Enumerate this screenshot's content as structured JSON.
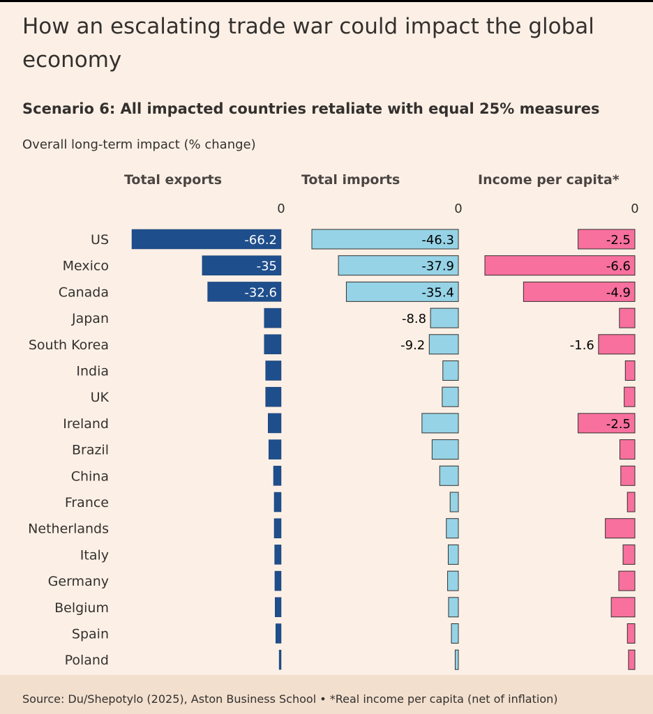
{
  "title": "How an escalating trade war could impact the global economy",
  "subtitle": "Scenario 6: All impacted countries retaliate with equal 25% measures",
  "unit_label": "Overall long-term impact (% change)",
  "source": "Source: Du/Shepotylo (2025), Aston Business School • *Real income per capita (net of inflation)",
  "chart_data": {
    "type": "bar",
    "orientation": "horizontal",
    "categories": [
      "US",
      "Mexico",
      "Canada",
      "Japan",
      "South Korea",
      "India",
      "UK",
      "Ireland",
      "Brazil",
      "China",
      "France",
      "Netherlands",
      "Italy",
      "Germany",
      "Belgium",
      "Spain",
      "Poland"
    ],
    "zero_tick_label": "0",
    "series": [
      {
        "name": "Total exports",
        "color": "#1f4e8c",
        "values": [
          -66.2,
          -35,
          -32.6,
          -7.5,
          -7.5,
          -6.9,
          -6.9,
          -5.8,
          -5.5,
          -3.4,
          -3.1,
          -3.1,
          -2.9,
          -2.8,
          -2.7,
          -2.4,
          -0.9
        ],
        "data_labels": [
          "-66.2",
          "-35",
          "-32.6",
          "",
          "",
          "",
          "",
          "",
          "",
          "",
          "",
          "",
          "",
          "",
          "",
          "",
          ""
        ],
        "axis_max_abs": 66.2
      },
      {
        "name": "Total imports",
        "color": "#96d3e6",
        "values": [
          -46.3,
          -37.9,
          -35.4,
          -8.8,
          -9.2,
          -4.9,
          -5.1,
          -11.5,
          -8.3,
          -5.9,
          -2.6,
          -3.8,
          -3.2,
          -3.4,
          -3.1,
          -2.2,
          -1.0
        ],
        "data_labels": [
          "-46.3",
          "-37.9",
          "-35.4",
          "-8.8",
          "-9.2",
          "",
          "",
          "",
          "",
          "",
          "",
          "",
          "",
          "",
          "",
          "",
          ""
        ],
        "axis_max_abs": 46.3
      },
      {
        "name": "Income per capita*",
        "color": "#f7709e",
        "values": [
          -2.5,
          -6.6,
          -4.9,
          -0.68,
          -1.6,
          -0.42,
          -0.47,
          -2.5,
          -0.66,
          -0.62,
          -0.33,
          -1.3,
          -0.52,
          -0.71,
          -1.04,
          -0.33,
          -0.28
        ],
        "data_labels": [
          "-2.5",
          "-6.6",
          "-4.9",
          "",
          "-1.6",
          "",
          "",
          "-2.5",
          "",
          "",
          "",
          "",
          "",
          "",
          "",
          "",
          ""
        ],
        "axis_max_abs": 6.6
      }
    ]
  }
}
